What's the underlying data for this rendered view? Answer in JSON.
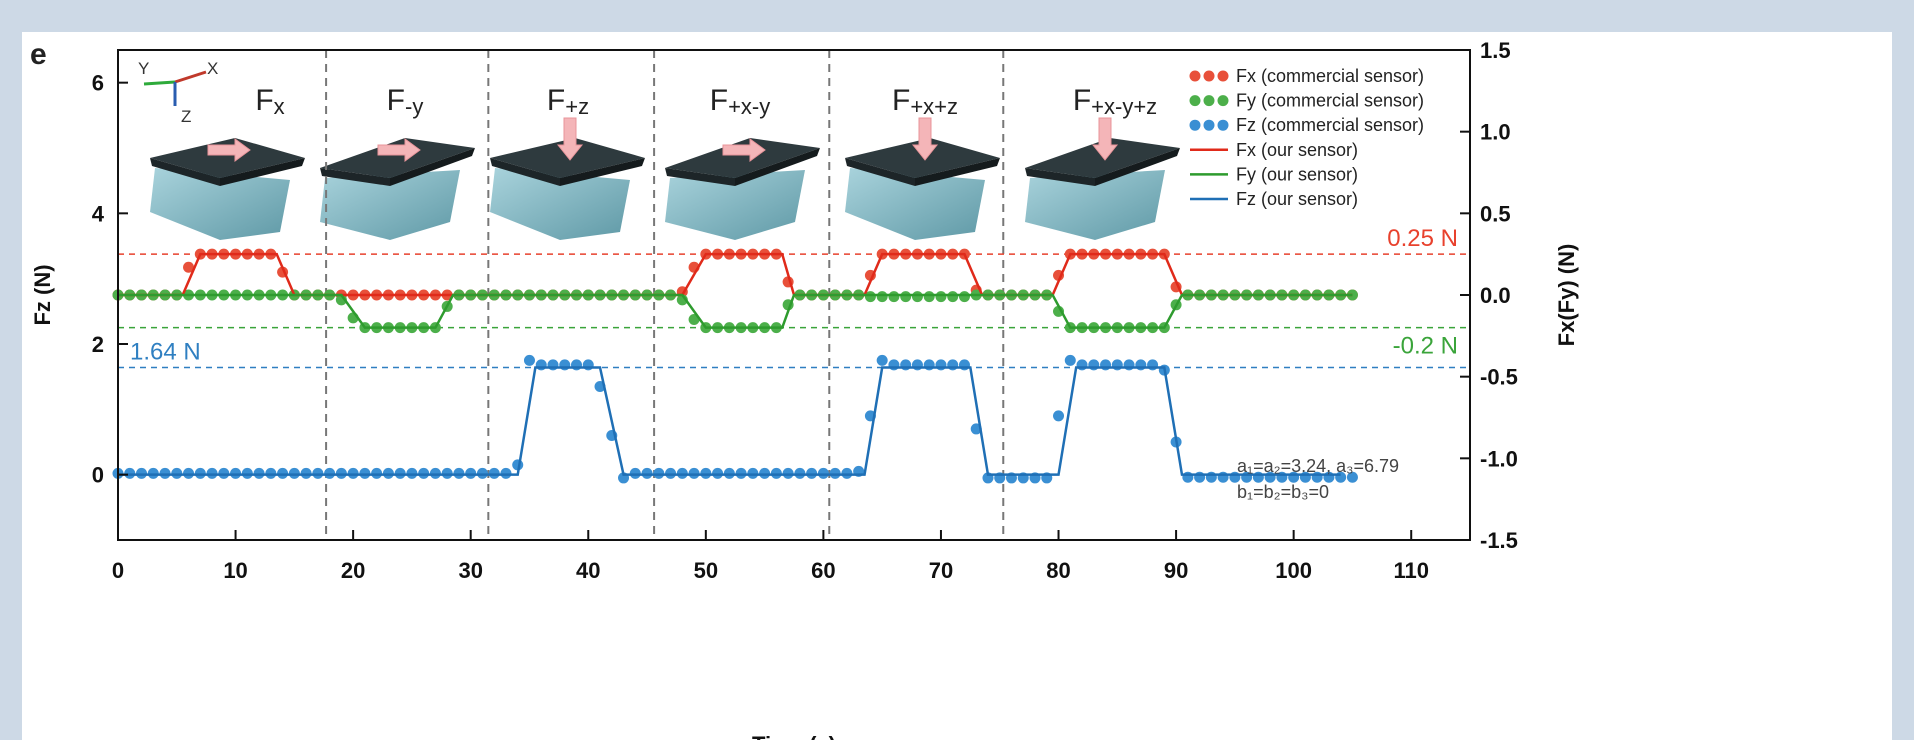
{
  "chart_data": {
    "type": "line",
    "panel_label": "e",
    "xlabel": "Time (s)",
    "ylabel": "Fz (N)",
    "y2label": "Fx(Fy) (N)",
    "xlim": [
      0,
      115
    ],
    "xticks": [
      0,
      10,
      20,
      30,
      40,
      50,
      60,
      70,
      80,
      90,
      100,
      110
    ],
    "ylim": [
      -1,
      6.5
    ],
    "yticks": [
      0,
      2,
      4,
      6
    ],
    "y2lim": [
      -1.5,
      1.5
    ],
    "y2ticks": [
      -1.5,
      {
        "value": -1.0,
        "label": "-1.0"
      },
      -0.5,
      {
        "value": 0.0,
        "label": "0.0"
      },
      0.5,
      {
        "value": 1.0,
        "label": "1.0"
      },
      1.5
    ],
    "legend": "upper right",
    "axis_icon": [
      "Y",
      "X",
      "Z"
    ],
    "sections": [
      {
        "text": "F",
        "sub": "x"
      },
      {
        "text": "F",
        "sub": "-y"
      },
      {
        "text": "F",
        "sub": "+z"
      },
      {
        "text": "F",
        "sub": "+x-y"
      },
      {
        "text": "F",
        "sub": "+x+z"
      },
      {
        "text": "F",
        "sub": "+x-y+z"
      }
    ],
    "dividers": [
      17.7,
      31.5,
      45.6,
      60.5,
      75.3
    ],
    "reference_lines": [
      {
        "value": 0.25,
        "label": "0.25 N",
        "axis": "y2",
        "color": "#e8412d"
      },
      {
        "value": -0.2,
        "label": "-0.2 N",
        "axis": "y2",
        "color": "#3aa43a"
      },
      {
        "value": 1.64,
        "label": "1.64 N",
        "axis": "y",
        "color": "#2f7fc1"
      }
    ],
    "annotations": [
      "a₁=a₂=3.24, a₃=6.79",
      "b₁=b₂=b₃=0"
    ],
    "x": [
      0,
      1,
      2,
      3,
      4,
      5,
      6,
      7,
      8,
      9,
      10,
      11,
      12,
      13,
      14,
      15,
      16,
      17,
      18,
      19,
      20,
      21,
      22,
      23,
      24,
      25,
      26,
      27,
      28,
      29,
      30,
      31,
      32,
      33,
      34,
      35,
      36,
      37,
      38,
      39,
      40,
      41,
      42,
      43,
      44,
      45,
      46,
      47,
      48,
      49,
      50,
      51,
      52,
      53,
      54,
      55,
      56,
      57,
      58,
      59,
      60,
      61,
      62,
      63,
      64,
      65,
      66,
      67,
      68,
      69,
      70,
      71,
      72,
      73,
      74,
      75,
      76,
      77,
      78,
      79,
      80,
      81,
      82,
      83,
      84,
      85,
      86,
      87,
      88,
      89,
      90,
      91,
      92,
      93,
      94,
      95,
      96,
      97,
      98,
      99,
      100,
      101,
      102,
      103,
      104,
      105
    ],
    "series": [
      {
        "name": "Fx (commercial sensor)",
        "kind": "dots",
        "axis": "y2",
        "color": "#e8503a",
        "values": [
          0,
          0,
          0,
          0,
          0,
          0,
          0.17,
          0.25,
          0.25,
          0.25,
          0.25,
          0.25,
          0.25,
          0.25,
          0.14,
          0,
          0,
          0,
          0,
          0,
          0,
          0,
          0,
          0,
          0,
          0,
          0,
          0,
          0,
          0,
          0,
          0,
          0,
          0,
          0,
          0,
          0,
          0,
          0,
          0,
          0,
          0,
          0,
          0,
          0,
          0,
          0,
          0,
          0.02,
          0.17,
          0.25,
          0.25,
          0.25,
          0.25,
          0.25,
          0.25,
          0.25,
          0.08,
          0,
          0,
          0,
          0,
          0,
          0,
          0.12,
          0.25,
          0.25,
          0.25,
          0.25,
          0.25,
          0.25,
          0.25,
          0.25,
          0.03,
          0,
          0,
          0,
          0,
          0,
          0,
          0.12,
          0.25,
          0.25,
          0.25,
          0.25,
          0.25,
          0.25,
          0.25,
          0.25,
          0.25,
          0.05,
          0,
          0,
          0,
          0,
          0,
          0,
          0,
          0,
          0,
          0,
          0,
          0,
          0,
          0,
          0
        ]
      },
      {
        "name": "Fy (commercial sensor)",
        "kind": "dots",
        "axis": "y2",
        "color": "#4caf4a",
        "values": [
          0,
          0,
          0,
          0,
          0,
          0,
          0,
          0,
          0,
          0,
          0,
          0,
          0,
          0,
          0,
          0,
          0,
          0,
          0,
          -0.03,
          -0.14,
          -0.2,
          -0.2,
          -0.2,
          -0.2,
          -0.2,
          -0.2,
          -0.2,
          -0.07,
          0,
          0,
          0,
          0,
          0,
          0,
          0,
          0,
          0,
          0,
          0,
          0,
          0,
          0,
          0,
          0,
          0,
          0,
          0,
          -0.03,
          -0.15,
          -0.2,
          -0.2,
          -0.2,
          -0.2,
          -0.2,
          -0.2,
          -0.2,
          -0.06,
          0,
          0,
          0,
          0,
          0,
          0,
          -0.01,
          -0.01,
          -0.01,
          -0.01,
          -0.01,
          -0.01,
          -0.01,
          -0.01,
          -0.01,
          0,
          0,
          0,
          0,
          0,
          0,
          0,
          -0.1,
          -0.2,
          -0.2,
          -0.2,
          -0.2,
          -0.2,
          -0.2,
          -0.2,
          -0.2,
          -0.2,
          -0.06,
          0,
          0,
          0,
          0,
          0,
          0,
          0,
          0,
          0,
          0,
          0,
          0,
          0,
          0,
          0
        ]
      },
      {
        "name": "Fz (commercial sensor)",
        "kind": "dots",
        "axis": "y",
        "color": "#3a8fd3",
        "values": [
          0.02,
          0.02,
          0.02,
          0.02,
          0.02,
          0.02,
          0.02,
          0.02,
          0.02,
          0.02,
          0.02,
          0.02,
          0.02,
          0.02,
          0.02,
          0.02,
          0.02,
          0.02,
          0.02,
          0.02,
          0.02,
          0.02,
          0.02,
          0.02,
          0.02,
          0.02,
          0.02,
          0.02,
          0.02,
          0.02,
          0.02,
          0.02,
          0.02,
          0.02,
          0.15,
          1.75,
          1.68,
          1.68,
          1.68,
          1.68,
          1.68,
          1.35,
          0.6,
          -0.05,
          0.02,
          0.02,
          0.02,
          0.02,
          0.02,
          0.02,
          0.02,
          0.02,
          0.02,
          0.02,
          0.02,
          0.02,
          0.02,
          0.02,
          0.02,
          0.02,
          0.02,
          0.02,
          0.02,
          0.05,
          0.9,
          1.75,
          1.68,
          1.68,
          1.68,
          1.68,
          1.68,
          1.68,
          1.68,
          0.7,
          -0.05,
          -0.05,
          -0.05,
          -0.05,
          -0.05,
          -0.05,
          0.9,
          1.75,
          1.68,
          1.68,
          1.68,
          1.68,
          1.68,
          1.68,
          1.68,
          1.6,
          0.5,
          -0.04,
          -0.04,
          -0.04,
          -0.04,
          -0.04,
          -0.04,
          -0.04,
          -0.04,
          -0.04,
          -0.04,
          -0.04,
          -0.04,
          -0.04,
          -0.04,
          -0.04
        ]
      },
      {
        "name": "Fx (our sensor)",
        "kind": "line",
        "axis": "y2",
        "color": "#e02a1a",
        "x": [
          0,
          5.5,
          7,
          13.5,
          15,
          48,
          50,
          56.5,
          57.5,
          63.5,
          65,
          72,
          73.5,
          79.5,
          81,
          89,
          90.5,
          105
        ],
        "values": [
          0,
          0,
          0.25,
          0.25,
          0,
          0,
          0.25,
          0.25,
          0,
          0,
          0.25,
          0.25,
          0,
          0,
          0.25,
          0.25,
          0,
          0
        ]
      },
      {
        "name": "Fy (our sensor)",
        "kind": "line",
        "axis": "y2",
        "color": "#2e9b2e",
        "x": [
          0,
          19,
          21,
          27,
          28.5,
          48,
          50,
          56.5,
          57.5,
          79.5,
          81,
          89,
          90.5,
          105
        ],
        "values": [
          0,
          0,
          -0.2,
          -0.2,
          0,
          0,
          -0.2,
          -0.2,
          0,
          0,
          -0.2,
          -0.2,
          0,
          0
        ]
      },
      {
        "name": "Fz (our sensor)",
        "kind": "line",
        "axis": "y",
        "color": "#1f6fb5",
        "x": [
          0,
          34,
          35.5,
          41,
          43,
          63.5,
          65,
          72.5,
          74,
          80,
          81.5,
          89,
          90.5,
          104
        ],
        "values": [
          0,
          0,
          1.64,
          1.64,
          0,
          0,
          1.64,
          1.64,
          0,
          0,
          1.64,
          1.64,
          0,
          0
        ]
      }
    ]
  }
}
